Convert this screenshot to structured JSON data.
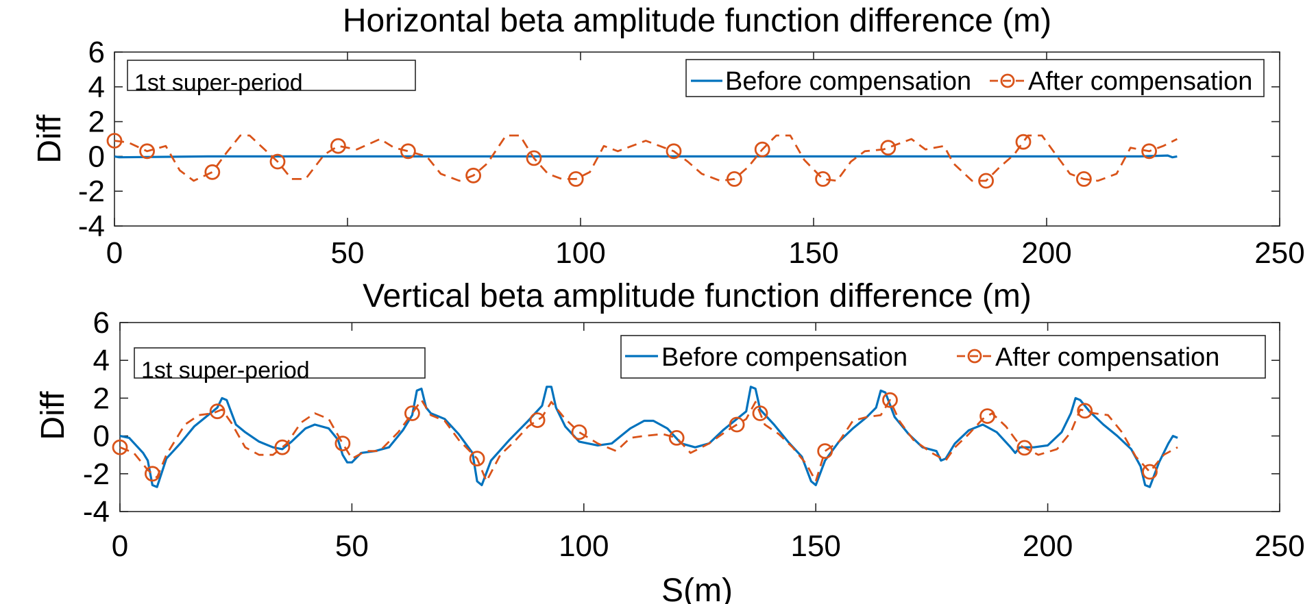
{
  "chart_data": [
    {
      "type": "line",
      "title": "Horizontal beta amplitude function difference (m)",
      "xlabel": "",
      "ylabel": "Diff",
      "xlim": [
        0,
        250
      ],
      "ylim": [
        -4,
        6
      ],
      "xticks": [
        "0",
        "50",
        "100",
        "150",
        "200",
        "250"
      ],
      "yticks": [
        "-4",
        "-2",
        "0",
        "2",
        "4",
        "6"
      ],
      "annotation": "1st super-period",
      "legend": [
        "Before compensation",
        "After compensation"
      ],
      "legend_position": "top-right",
      "series": [
        {
          "name": "Before compensation",
          "x": [
            0,
            1,
            20,
            40,
            60,
            80,
            100,
            120,
            140,
            160,
            180,
            200,
            220,
            226,
            227,
            228
          ],
          "y": [
            0,
            -0.05,
            0,
            0,
            0,
            0,
            0,
            0,
            0,
            0,
            0,
            0,
            0,
            0.05,
            -0.05,
            0
          ]
        },
        {
          "name": "After compensation",
          "x": [
            0,
            3,
            7,
            11,
            14,
            17,
            21,
            24,
            27,
            29,
            31,
            35,
            38,
            41,
            45,
            48,
            52,
            57,
            60,
            63,
            67,
            70,
            74,
            77,
            80,
            84,
            87,
            90,
            93,
            96,
            99,
            102,
            105,
            108,
            111,
            114,
            117,
            120,
            123,
            126,
            130,
            133,
            136,
            139,
            142,
            145,
            148,
            152,
            155,
            158,
            161,
            165,
            168,
            171,
            174,
            178,
            180,
            184,
            187,
            190,
            193,
            196,
            199,
            202,
            205,
            208,
            211,
            215,
            218,
            222,
            225,
            228
          ],
          "y": [
            0.9,
            0.8,
            0.3,
            0.6,
            -0.8,
            -1.4,
            -0.9,
            0.2,
            1.2,
            1.2,
            0.7,
            -0.3,
            -1.3,
            -1.3,
            0.1,
            0.6,
            0.4,
            1.0,
            0.5,
            0.3,
            0.0,
            -1.0,
            -1.4,
            -1.1,
            -0.4,
            1.2,
            1.2,
            -0.1,
            -1.0,
            -1.3,
            -1.3,
            -0.9,
            0.6,
            0.3,
            0.6,
            0.9,
            0.6,
            0.3,
            -0.3,
            -1.0,
            -1.4,
            -1.3,
            -0.6,
            0.4,
            1.2,
            1.2,
            -0.2,
            -1.3,
            -1.4,
            -0.3,
            0.3,
            0.4,
            0.7,
            1.0,
            0.4,
            0.6,
            -0.4,
            -1.4,
            -1.4,
            -0.6,
            0.1,
            1.2,
            1.2,
            0.1,
            -1.0,
            -1.3,
            -1.4,
            -1.0,
            0.5,
            0.3,
            0.6,
            1.0
          ]
        }
      ],
      "markers_x": [
        0,
        7,
        21,
        35,
        48,
        63,
        77,
        90,
        99,
        120,
        133,
        139,
        152,
        166,
        187,
        195,
        208,
        222
      ]
    },
    {
      "type": "line",
      "title": "Vertical beta amplitude function difference (m)",
      "xlabel": "S(m)",
      "ylabel": "Diff",
      "xlim": [
        0,
        250
      ],
      "ylim": [
        -4,
        6
      ],
      "xticks": [
        "0",
        "50",
        "100",
        "150",
        "200",
        "250"
      ],
      "yticks": [
        "-4",
        "-2",
        "0",
        "2",
        "4",
        "6"
      ],
      "annotation": "1st super-period",
      "legend": [
        "Before compensation",
        "After compensation"
      ],
      "legend_position": "top-right",
      "series": [
        {
          "name": "Before compensation",
          "x": [
            0,
            2,
            5,
            6,
            7,
            8,
            10,
            13,
            16,
            19,
            21,
            22,
            23,
            25,
            27,
            30,
            33,
            35,
            37,
            40,
            42,
            45,
            47,
            48,
            49,
            50,
            52,
            55,
            58,
            61,
            63,
            64,
            65,
            66,
            67,
            70,
            73,
            76,
            77,
            78,
            80,
            84,
            88,
            91,
            92,
            93,
            94,
            96,
            99,
            103,
            106,
            108,
            110,
            113,
            115,
            118,
            121,
            124,
            127,
            130,
            133,
            135,
            136,
            137,
            138,
            141,
            144,
            147,
            149,
            150,
            152,
            155,
            158,
            161,
            163,
            164,
            165,
            167,
            170,
            173,
            176,
            177,
            178,
            180,
            183,
            186,
            189,
            192,
            193,
            194,
            197,
            200,
            203,
            205,
            206,
            207,
            209,
            212,
            215,
            218,
            220,
            221,
            222,
            224,
            226,
            227,
            228
          ],
          "y": [
            0.0,
            -0.1,
            -0.9,
            -1.3,
            -2.6,
            -2.7,
            -1.2,
            -0.4,
            0.5,
            1.1,
            1.5,
            2.0,
            1.9,
            0.6,
            0.2,
            -0.3,
            -0.6,
            -0.7,
            -0.3,
            0.4,
            0.6,
            0.4,
            -0.2,
            -1.0,
            -1.4,
            -1.4,
            -0.9,
            -0.8,
            -0.6,
            0.3,
            1.1,
            2.4,
            2.5,
            1.5,
            1.2,
            0.9,
            0.1,
            -0.9,
            -2.4,
            -2.6,
            -1.3,
            -0.2,
            0.8,
            1.6,
            2.6,
            2.6,
            1.5,
            0.5,
            -0.3,
            -0.5,
            -0.4,
            0.0,
            0.4,
            0.8,
            0.8,
            0.4,
            -0.4,
            -0.6,
            -0.4,
            0.3,
            0.9,
            1.3,
            2.6,
            2.5,
            1.4,
            0.6,
            -0.3,
            -1.1,
            -2.4,
            -2.6,
            -1.3,
            -0.3,
            0.4,
            1.0,
            1.5,
            2.4,
            2.3,
            1.0,
            0.1,
            -0.6,
            -0.8,
            -1.3,
            -1.2,
            -0.4,
            0.3,
            0.6,
            0.2,
            -0.6,
            -0.9,
            -0.6,
            -0.6,
            -0.5,
            0.2,
            1.2,
            2.0,
            1.9,
            1.3,
            0.6,
            0.0,
            -0.7,
            -1.6,
            -2.6,
            -2.7,
            -1.4,
            -0.4,
            0.0,
            -0.1
          ]
        },
        {
          "name": "After compensation",
          "x": [
            0,
            3,
            6,
            8,
            10,
            14,
            17,
            20,
            22,
            24,
            27,
            30,
            33,
            36,
            39,
            42,
            45,
            48,
            50,
            53,
            56,
            60,
            63,
            65,
            67,
            70,
            73,
            77,
            79,
            82,
            85,
            88,
            91,
            93,
            96,
            99,
            103,
            107,
            110,
            113,
            117,
            120,
            123,
            127,
            131,
            135,
            137,
            139,
            142,
            145,
            148,
            150,
            152,
            155,
            158,
            161,
            164,
            166,
            168,
            171,
            175,
            178,
            180,
            183,
            186,
            188,
            191,
            194,
            198,
            202,
            205,
            207,
            210,
            213,
            216,
            219,
            222,
            225,
            228
          ],
          "y": [
            -0.6,
            -0.9,
            -1.8,
            -2.2,
            -1.0,
            0.6,
            1.1,
            1.2,
            1.4,
            0.7,
            -0.6,
            -1.0,
            -1.0,
            -0.4,
            0.7,
            1.2,
            0.9,
            -0.4,
            -1.2,
            -0.8,
            -0.8,
            0.2,
            1.2,
            1.9,
            1.1,
            0.8,
            -0.2,
            -1.2,
            -2.4,
            -1.0,
            -0.3,
            0.5,
            1.0,
            1.8,
            0.9,
            0.2,
            -0.4,
            -0.8,
            -0.1,
            0.0,
            0.1,
            -0.1,
            -0.9,
            -0.4,
            0.3,
            0.9,
            1.8,
            0.6,
            0.1,
            -0.6,
            -1.5,
            -2.4,
            -0.8,
            -0.3,
            0.8,
            1.0,
            1.1,
            1.9,
            0.8,
            -0.2,
            -0.9,
            -1.3,
            -0.6,
            0.1,
            0.9,
            1.2,
            0.5,
            -0.5,
            -1.0,
            -0.7,
            0.2,
            1.4,
            1.2,
            1.1,
            0.2,
            -1.1,
            -1.9,
            -1.0,
            -0.6
          ]
        }
      ],
      "markers_x": [
        0,
        7,
        21,
        35,
        48,
        63,
        77,
        90,
        99,
        120,
        133,
        138,
        152,
        166,
        187,
        195,
        208,
        222
      ]
    }
  ]
}
